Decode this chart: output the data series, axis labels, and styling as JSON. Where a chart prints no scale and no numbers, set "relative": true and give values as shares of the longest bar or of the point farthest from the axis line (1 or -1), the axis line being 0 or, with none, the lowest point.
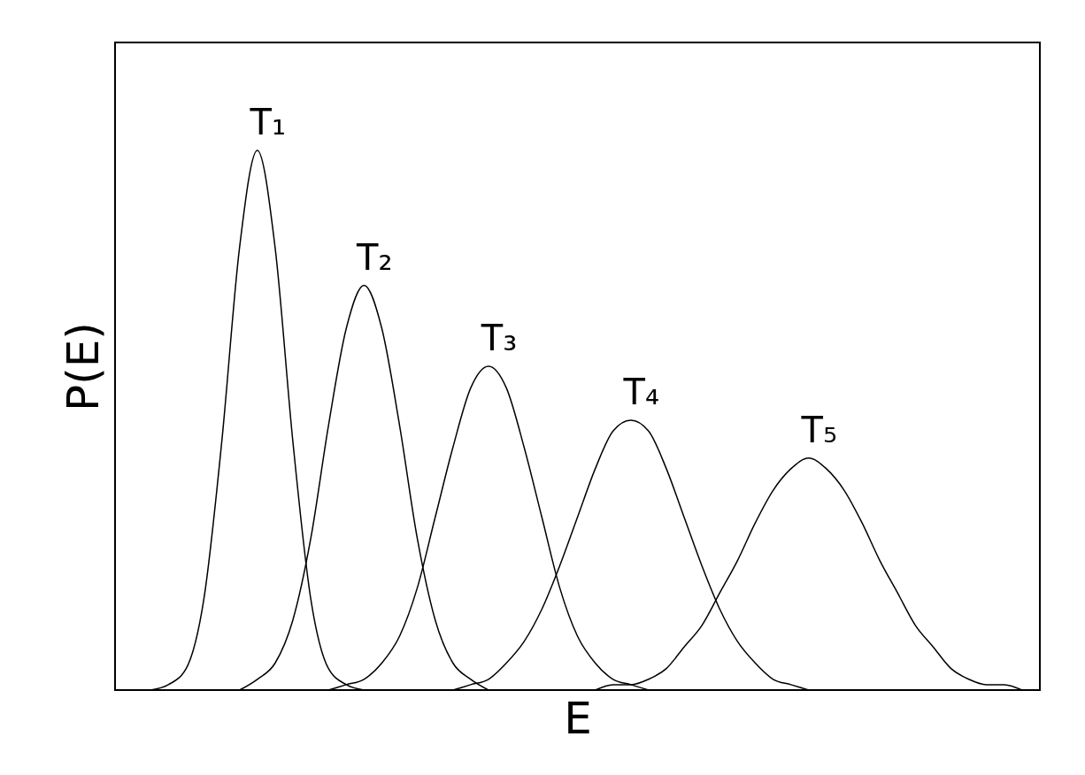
{
  "chart_data": {
    "type": "line",
    "relative": true,
    "xlabel": "E",
    "ylabel": "P(E)",
    "legend": false,
    "grid": false,
    "marker": "none",
    "line_style": "solid",
    "categories": [
      null,
      null,
      null,
      null,
      null,
      null,
      null,
      null,
      null,
      null,
      null,
      null,
      null,
      null,
      null,
      null,
      null,
      null,
      null,
      null,
      null,
      null,
      null,
      null,
      null,
      null,
      null,
      null,
      null,
      null,
      null,
      null,
      null,
      null,
      null,
      null,
      null,
      null,
      null,
      null,
      null,
      null,
      null,
      null,
      null,
      null,
      null,
      null,
      null,
      null,
      null,
      null,
      null
    ],
    "series": [
      {
        "name": "T₁",
        "color": "#000000",
        "values": [
          null,
          null,
          0,
          0.01,
          0.04,
          0.17,
          0.46,
          0.82,
          1,
          0.82,
          0.46,
          0.17,
          0.04,
          0.01,
          0,
          null,
          null,
          null,
          null,
          null,
          null,
          null,
          null,
          null,
          null,
          null,
          null,
          null,
          null,
          null,
          null,
          null,
          null,
          null,
          null,
          null,
          null,
          null,
          null,
          null,
          null,
          null,
          null,
          null,
          null,
          null,
          null,
          null,
          null,
          null,
          null,
          null,
          null
        ]
      },
      {
        "name": "T₂",
        "color": "#000000",
        "values": [
          null,
          null,
          null,
          null,
          null,
          null,
          null,
          0,
          0.02,
          0.05,
          0.13,
          0.28,
          0.49,
          0.67,
          0.75,
          0.67,
          0.49,
          0.28,
          0.13,
          0.05,
          0.02,
          0,
          null,
          null,
          null,
          null,
          null,
          null,
          null,
          null,
          null,
          null,
          null,
          null,
          null,
          null,
          null,
          null,
          null,
          null,
          null,
          null,
          null,
          null,
          null,
          null,
          null,
          null,
          null,
          null,
          null,
          null,
          null
        ]
      },
      {
        "name": "T₃",
        "color": "#000000",
        "values": [
          null,
          null,
          null,
          null,
          null,
          null,
          null,
          null,
          null,
          null,
          null,
          null,
          0,
          0.01,
          0.02,
          0.05,
          0.1,
          0.19,
          0.32,
          0.45,
          0.56,
          0.6,
          0.56,
          0.45,
          0.32,
          0.19,
          0.1,
          0.05,
          0.02,
          0.01,
          0,
          null,
          null,
          null,
          null,
          null,
          null,
          null,
          null,
          null,
          null,
          null,
          null,
          null,
          null,
          null,
          null,
          null,
          null,
          null,
          null,
          null,
          null
        ]
      },
      {
        "name": "T₄",
        "color": "#000000",
        "values": [
          null,
          null,
          null,
          null,
          null,
          null,
          null,
          null,
          null,
          null,
          null,
          null,
          null,
          null,
          null,
          null,
          null,
          null,
          null,
          0,
          0.01,
          0.02,
          0.05,
          0.09,
          0.15,
          0.23,
          0.32,
          0.41,
          0.48,
          0.5,
          0.48,
          0.41,
          0.32,
          0.23,
          0.15,
          0.09,
          0.05,
          0.02,
          0.01,
          0,
          null,
          null,
          null,
          null,
          null,
          null,
          null,
          null,
          null,
          null,
          null,
          null,
          null
        ]
      },
      {
        "name": "T₅",
        "color": "#000000",
        "values": [
          null,
          null,
          null,
          null,
          null,
          null,
          null,
          null,
          null,
          null,
          null,
          null,
          null,
          null,
          null,
          null,
          null,
          null,
          null,
          null,
          null,
          null,
          null,
          null,
          null,
          null,
          null,
          0,
          0.01,
          0.01,
          0.02,
          0.04,
          0.08,
          0.12,
          0.18,
          0.24,
          0.31,
          0.37,
          0.41,
          0.43,
          0.41,
          0.37,
          0.31,
          0.24,
          0.18,
          0.12,
          0.08,
          0.04,
          0.02,
          0.01,
          0.01,
          0,
          null
        ]
      }
    ]
  }
}
